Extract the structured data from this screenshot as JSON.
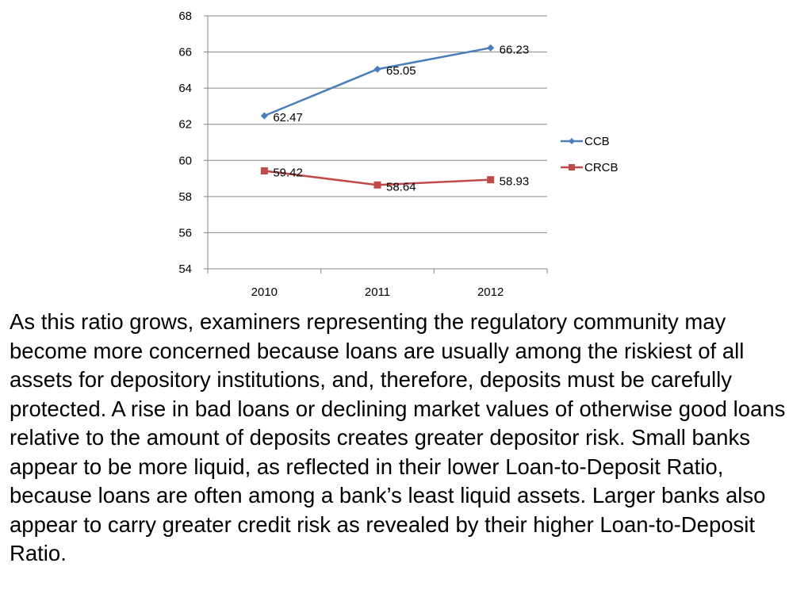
{
  "chart_data": {
    "type": "line",
    "categories": [
      "2010",
      "2011",
      "2012"
    ],
    "series": [
      {
        "name": "CCB",
        "values": [
          62.47,
          65.05,
          66.23
        ],
        "labels": [
          "62.47",
          "65.05",
          "66.23"
        ],
        "color": "#4a7ebb",
        "marker": "diamond"
      },
      {
        "name": "CRCB",
        "values": [
          59.42,
          58.64,
          58.93
        ],
        "labels": [
          "59.42",
          "58.64",
          "58.93"
        ],
        "color": "#be4b48",
        "marker": "square"
      }
    ],
    "ylim": [
      54,
      68
    ],
    "yticks": [
      "54",
      "56",
      "58",
      "60",
      "62",
      "64",
      "66",
      "68"
    ],
    "grid": true,
    "legend": "right",
    "title": "",
    "xlabel": "",
    "ylabel": ""
  },
  "body_text": "As this ratio grows, examiners representing the regulatory community may become more concerned because loans are usually among the riskiest of all assets for depository institutions, and, therefore, deposits must be carefully protected. A rise in bad loans or declining market values of otherwise good loans relative to the amount of deposits creates greater depositor risk. Small banks appear to be more liquid, as reflected in their lower Loan-to-Deposit Ratio, because loans are often among a bank’s least liquid assets. Larger banks also appear to carry greater credit risk as revealed by their higher Loan-to-Deposit Ratio."
}
